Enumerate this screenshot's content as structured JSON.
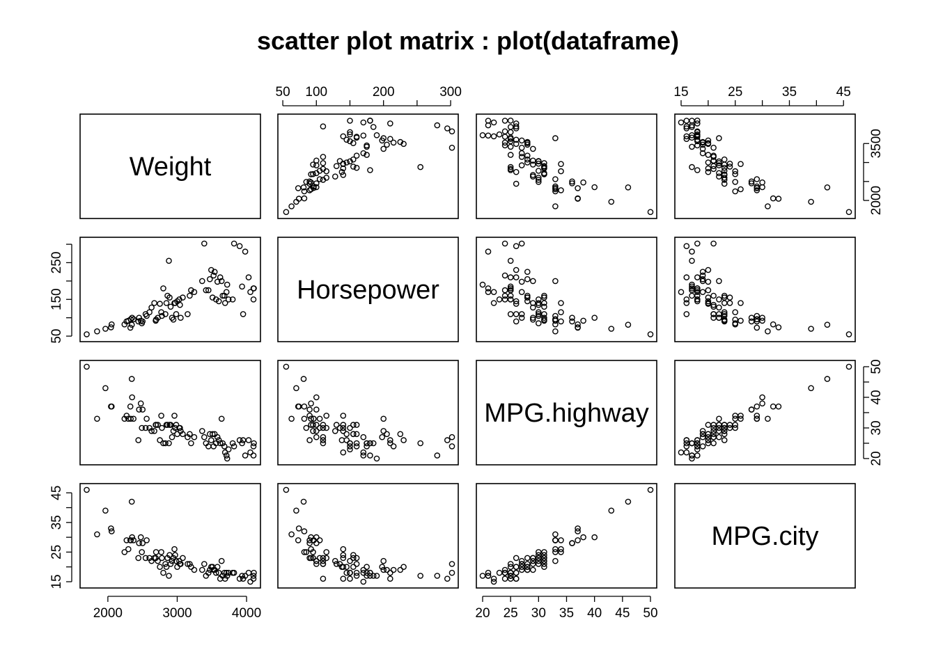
{
  "chart_data": {
    "type": "scatter",
    "title": "scatter plot matrix : plot(dataframe)",
    "variables": [
      "Weight",
      "Horsepower",
      "MPG.highway",
      "MPG.city"
    ],
    "ranges": {
      "Weight": [
        1690,
        4110
      ],
      "Horsepower": [
        52,
        302
      ],
      "MPG.highway": [
        20,
        50
      ],
      "MPG.city": [
        15,
        46
      ]
    },
    "ticks": {
      "Weight": [
        2000,
        3000,
        4000
      ],
      "Horsepower": [
        50,
        100,
        150,
        200,
        250,
        300
      ],
      "MPG.highway": [
        20,
        25,
        30,
        35,
        40,
        45,
        50
      ],
      "MPG.city": [
        15,
        25,
        35,
        45
      ]
    },
    "ticks_left": {
      "Horsepower": [
        50,
        150,
        250
      ]
    },
    "tick_labels_top": {
      "Horsepower": [
        "50",
        "100",
        "200",
        "300"
      ]
    },
    "tick_labels_left": {
      "Horsepower": [
        "50",
        "150",
        "250"
      ]
    },
    "tick_labels_bottom": {
      "Weight": [
        "2000",
        "3000",
        "4000"
      ],
      "MPG.highway": [
        "20",
        "25",
        "30",
        "35",
        "40",
        "45",
        "50"
      ]
    },
    "tick_labels_top_city": [
      "15",
      "25",
      "35",
      "45"
    ],
    "tick_labels_right": {
      "Weight": [
        "2000",
        "3500"
      ],
      "MPG.highway": [
        "20",
        "30",
        "40",
        "50"
      ]
    },
    "tick_labels_left_city": [
      "15",
      "25",
      "35",
      "45"
    ],
    "ticks_right_weight": [
      2000,
      2500,
      3000,
      3500
    ],
    "observations": [
      [
        1695,
        55,
        50,
        46
      ],
      [
        1845,
        63,
        33,
        31
      ],
      [
        1965,
        70,
        43,
        39
      ],
      [
        2045,
        74,
        37,
        33
      ],
      [
        2055,
        82,
        37,
        32
      ],
      [
        2240,
        82,
        33,
        25
      ],
      [
        2270,
        90,
        34,
        29
      ],
      [
        2295,
        92,
        33,
        26
      ],
      [
        2325,
        73,
        37,
        29
      ],
      [
        2345,
        81,
        46,
        42
      ],
      [
        2350,
        100,
        40,
        30
      ],
      [
        2330,
        96,
        33,
        29
      ],
      [
        2370,
        96,
        33,
        29
      ],
      [
        2440,
        90,
        26,
        23
      ],
      [
        2450,
        100,
        36,
        28
      ],
      [
        2475,
        92,
        38,
        30
      ],
      [
        2490,
        85,
        30,
        25
      ],
      [
        2500,
        90,
        36,
        28
      ],
      [
        2545,
        110,
        30,
        23
      ],
      [
        2560,
        105,
        33,
        29
      ],
      [
        2600,
        115,
        30,
        23
      ],
      [
        2630,
        128,
        29,
        22
      ],
      [
        2670,
        140,
        29,
        23
      ],
      [
        2690,
        92,
        31,
        23
      ],
      [
        2695,
        95,
        31,
        25
      ],
      [
        2720,
        100,
        31,
        22
      ],
      [
        2750,
        138,
        26,
        20
      ],
      [
        2770,
        115,
        34,
        25
      ],
      [
        2780,
        105,
        30,
        23
      ],
      [
        2800,
        180,
        25,
        18
      ],
      [
        2830,
        110,
        25,
        21
      ],
      [
        2845,
        140,
        31,
        20
      ],
      [
        2860,
        160,
        31,
        23
      ],
      [
        2880,
        255,
        25,
        17
      ],
      [
        2890,
        155,
        31,
        24
      ],
      [
        2905,
        130,
        31,
        21
      ],
      [
        2925,
        100,
        27,
        22
      ],
      [
        2945,
        95,
        29,
        23
      ],
      [
        2960,
        140,
        34,
        26
      ],
      [
        2970,
        140,
        30,
        24
      ],
      [
        2985,
        110,
        31,
        22
      ],
      [
        3000,
        145,
        28,
        20
      ],
      [
        3030,
        150,
        30,
        22
      ],
      [
        3040,
        135,
        30,
        21
      ],
      [
        3050,
        100,
        29,
        21
      ],
      [
        3080,
        155,
        28,
        23
      ],
      [
        3150,
        110,
        27,
        21
      ],
      [
        3180,
        160,
        28,
        21
      ],
      [
        3200,
        175,
        25,
        20
      ],
      [
        3245,
        170,
        27,
        19
      ],
      [
        3360,
        200,
        29,
        19
      ],
      [
        3390,
        302,
        27,
        21
      ],
      [
        3415,
        175,
        25,
        17
      ],
      [
        3450,
        175,
        24,
        18
      ],
      [
        3470,
        205,
        28,
        19
      ],
      [
        3490,
        230,
        26,
        20
      ],
      [
        3510,
        155,
        28,
        20
      ],
      [
        3525,
        215,
        24,
        19
      ],
      [
        3540,
        225,
        28,
        19
      ],
      [
        3560,
        150,
        25,
        18
      ],
      [
        3580,
        198,
        27,
        20
      ],
      [
        3600,
        145,
        26,
        18
      ],
      [
        3620,
        210,
        25,
        16
      ],
      [
        3640,
        200,
        33,
        22
      ],
      [
        3655,
        160,
        25,
        17
      ],
      [
        3680,
        160,
        24,
        18
      ],
      [
        3690,
        140,
        22,
        16
      ],
      [
        3710,
        170,
        21,
        18
      ],
      [
        3720,
        190,
        20,
        17
      ],
      [
        3740,
        150,
        23,
        18
      ],
      [
        3800,
        150,
        25,
        18
      ],
      [
        3820,
        302,
        24,
        18
      ],
      [
        3900,
        295,
        26,
        16
      ],
      [
        3935,
        185,
        25,
        17
      ],
      [
        3950,
        110,
        26,
        16
      ],
      [
        3980,
        280,
        21,
        17
      ],
      [
        4030,
        210,
        26,
        18
      ],
      [
        4055,
        170,
        22,
        15
      ],
      [
        4100,
        150,
        24,
        16
      ],
      [
        4100,
        180,
        21,
        17
      ],
      [
        4105,
        180,
        25,
        18
      ]
    ]
  }
}
